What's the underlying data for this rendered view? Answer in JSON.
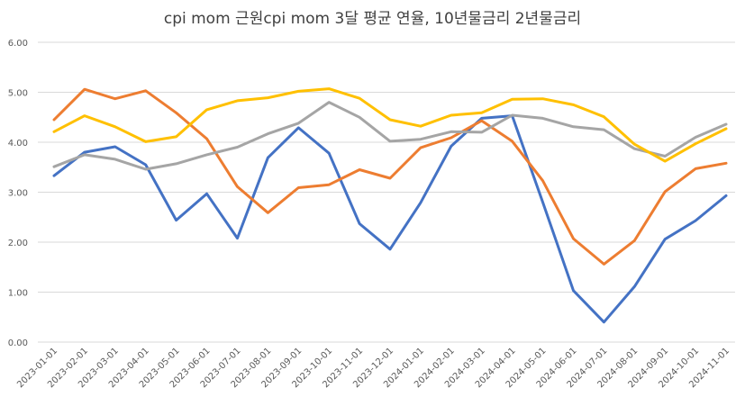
{
  "chart_data": {
    "type": "line",
    "title": "cpi mom 근원cpi mom 3달 평균 연율, 10년물금리 2년물금리",
    "xlabel": "",
    "ylabel": "",
    "ylim": [
      0,
      6
    ],
    "yticks": [
      "0.00",
      "1.00",
      "2.00",
      "3.00",
      "4.00",
      "5.00",
      "6.00"
    ],
    "ytick_values": [
      0,
      1,
      2,
      3,
      4,
      5,
      6
    ],
    "grid": true,
    "legend": "none",
    "categories": [
      "2023-01-01",
      "2023-02-01",
      "2023-03-01",
      "2023-04-01",
      "2023-05-01",
      "2023-06-01",
      "2023-07-01",
      "2023-08-01",
      "2023-09-01",
      "2023-10-01",
      "2023-11-01",
      "2023-12-01",
      "2024-01-01",
      "2024-02-01",
      "2024-03-01",
      "2024-04-01",
      "2024-05-01",
      "2024-06-01",
      "2024-07-01",
      "2024-08-01",
      "2024-09-01",
      "2024-10-01",
      "2024-11-01"
    ],
    "series": [
      {
        "name": "cpi mom",
        "color": "#4472c4",
        "values": [
          3.33,
          3.8,
          3.91,
          3.55,
          2.44,
          2.97,
          2.08,
          3.69,
          4.29,
          3.78,
          2.37,
          1.86,
          2.79,
          3.92,
          4.48,
          4.53,
          2.8,
          1.03,
          0.4,
          1.11,
          2.06,
          2.43,
          2.93
        ]
      },
      {
        "name": "근원cpi mom",
        "color": "#ed7d31",
        "values": [
          4.45,
          5.06,
          4.87,
          5.03,
          4.59,
          4.07,
          3.11,
          2.59,
          3.09,
          3.15,
          3.45,
          3.28,
          3.89,
          4.09,
          4.43,
          4.02,
          3.23,
          2.07,
          1.56,
          2.03,
          3.01,
          3.47,
          3.58
        ]
      },
      {
        "name": "10년물금리",
        "color": "#a5a5a5",
        "values": [
          3.51,
          3.75,
          3.66,
          3.46,
          3.57,
          3.75,
          3.9,
          4.17,
          4.38,
          4.8,
          4.5,
          4.02,
          4.06,
          4.21,
          4.2,
          4.54,
          4.48,
          4.31,
          4.25,
          3.87,
          3.72,
          4.1,
          4.36
        ]
      },
      {
        "name": "2년물금리",
        "color": "#ffc000",
        "values": [
          4.21,
          4.53,
          4.31,
          4.01,
          4.11,
          4.65,
          4.83,
          4.89,
          5.02,
          5.07,
          4.88,
          4.45,
          4.32,
          4.54,
          4.59,
          4.86,
          4.87,
          4.75,
          4.51,
          3.96,
          3.62,
          3.97,
          4.27
        ]
      }
    ]
  }
}
